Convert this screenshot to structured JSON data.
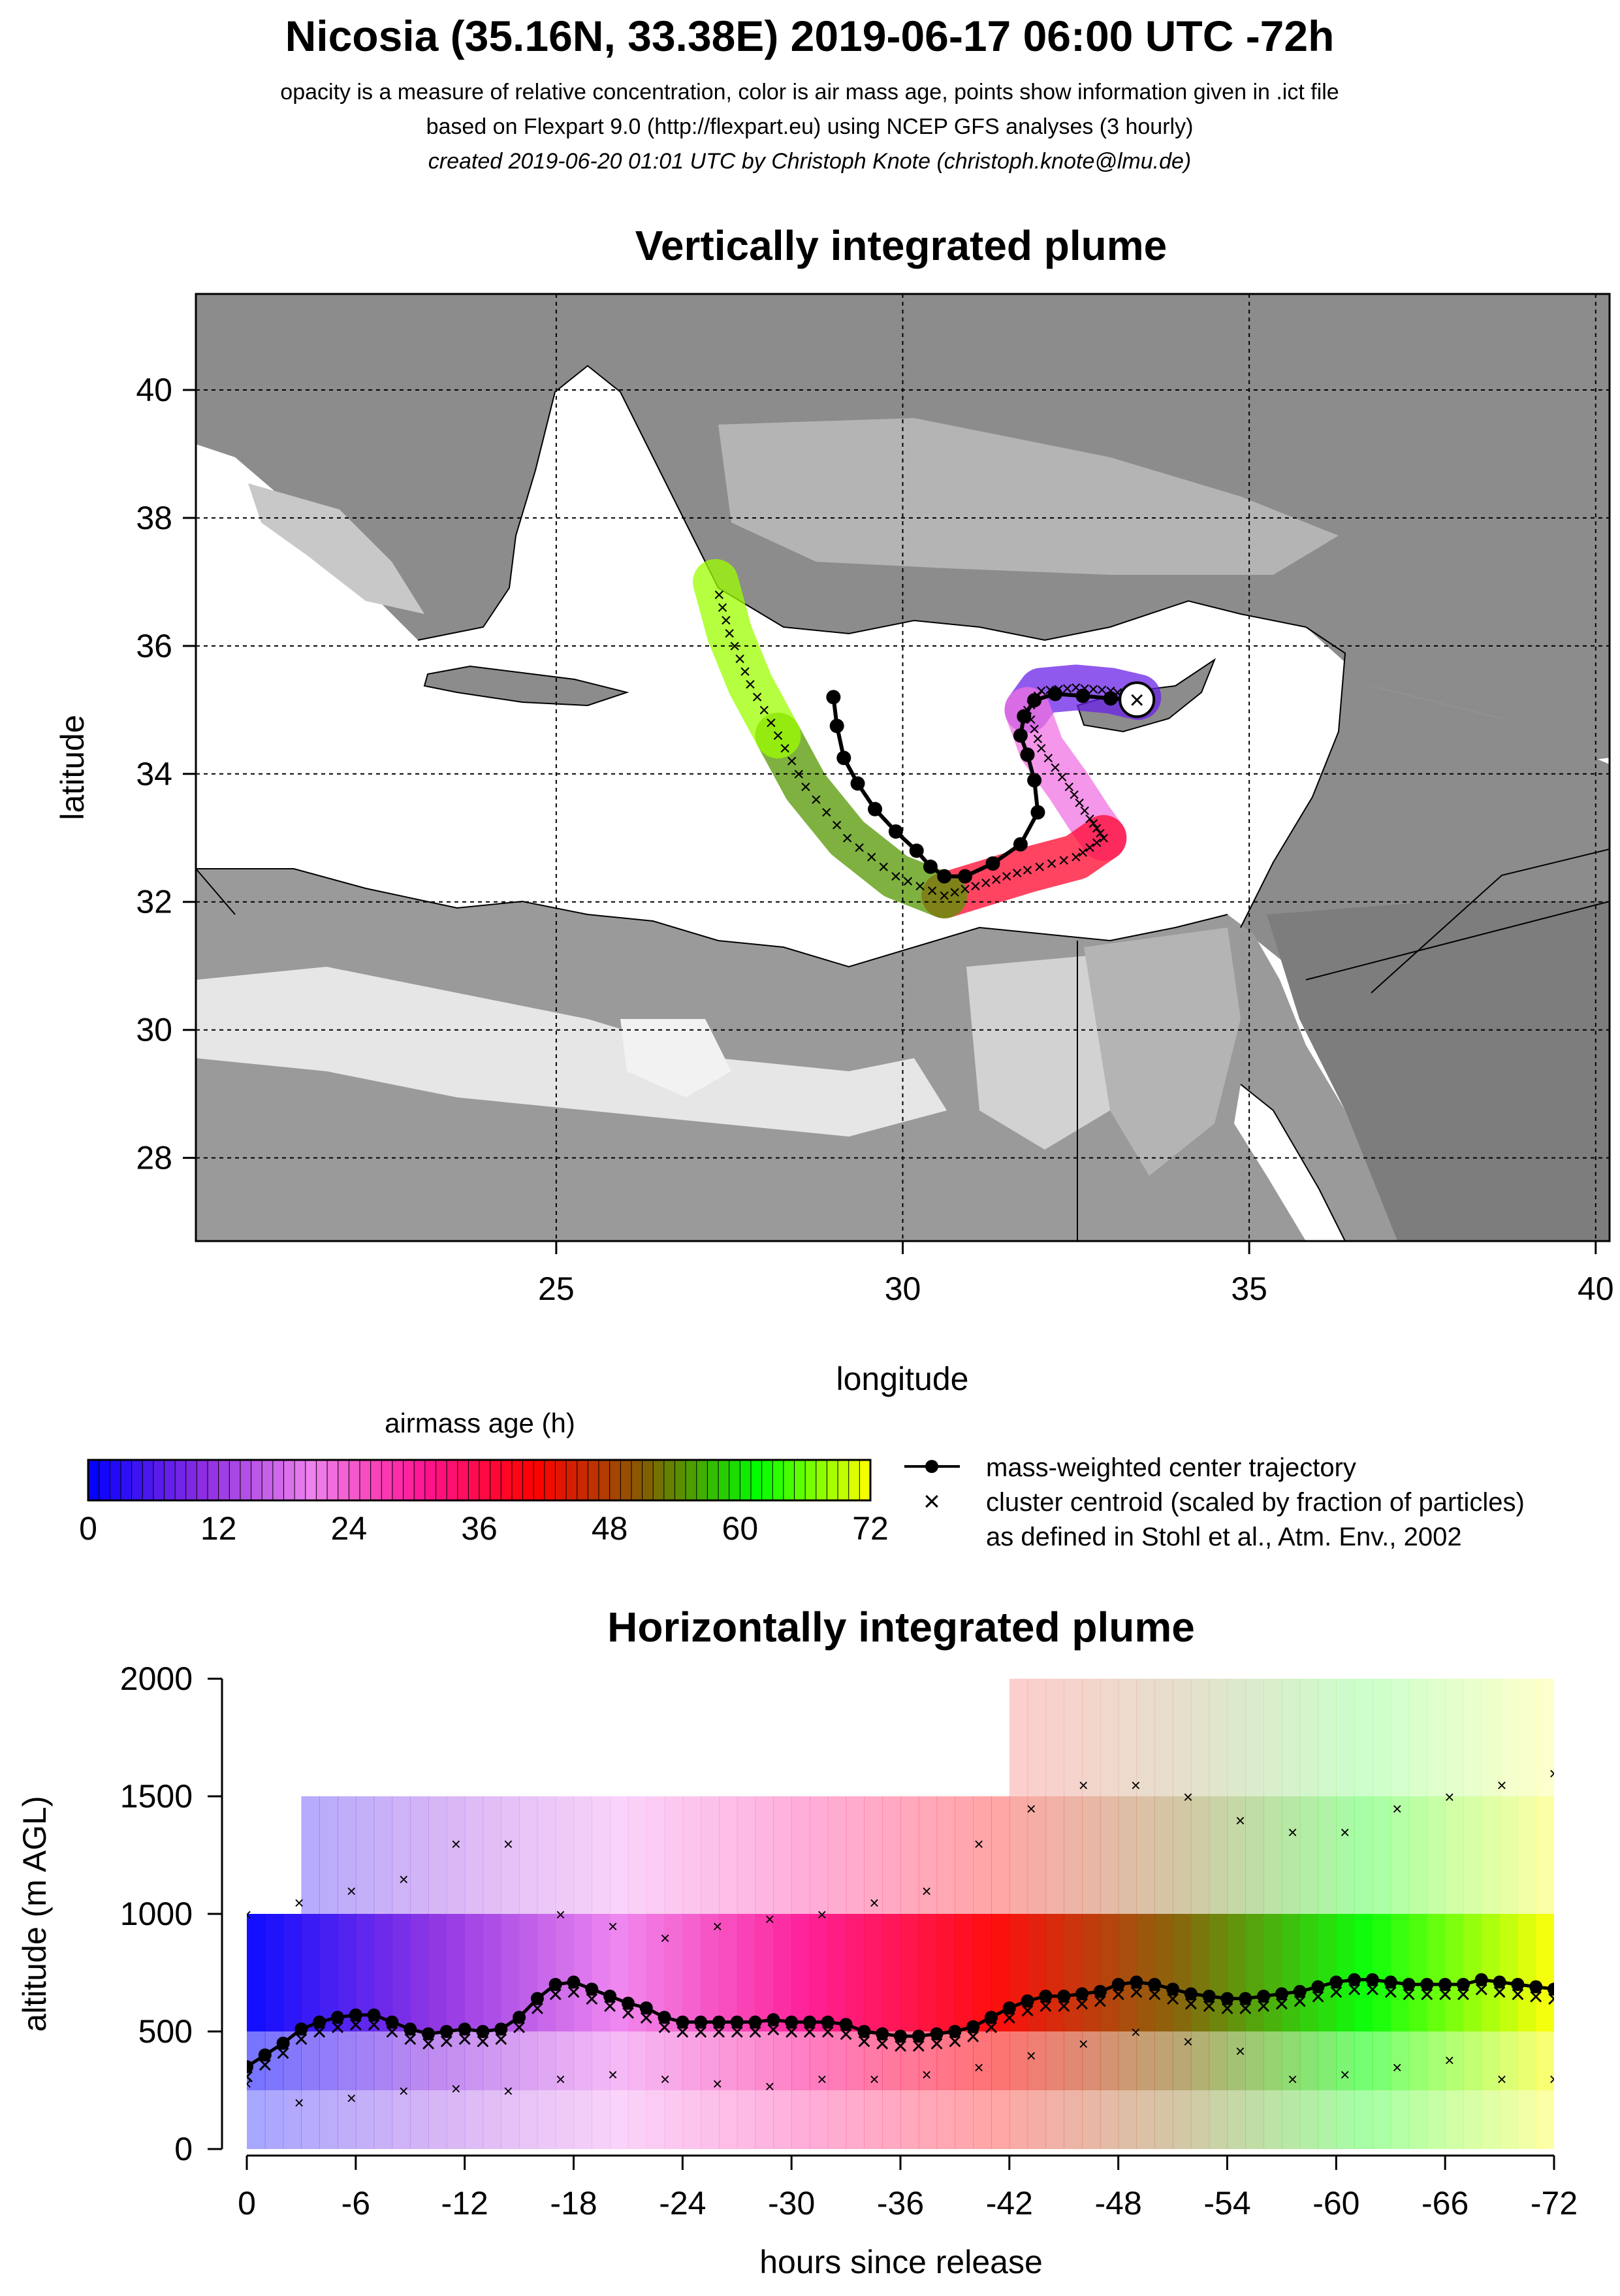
{
  "header": {
    "title": "Nicosia (35.16N, 33.38E) 2019-06-17 06:00 UTC -72h",
    "line1": "opacity is a measure of relative concentration, color is air mass age, points show information given in .ict file",
    "line2": "based on Flexpart 9.0 (http://flexpart.eu) using NCEP GFS analyses (3 hourly)",
    "line3": "created 2019-06-20 01:01 UTC by Christoph Knote (christoph.knote@lmu.de)"
  },
  "colors": {
    "age_ramp": [
      "#0000ff",
      "#8a2be2",
      "#ee82ee",
      "#ff1493",
      "#ff0000",
      "#806000",
      "#00ff00",
      "#ffff00"
    ],
    "land": "#888888",
    "sea": "#ffffff",
    "grid": "#000000"
  },
  "chart_data": [
    {
      "type": "heatmap",
      "title": "Vertically integrated plume",
      "xlabel": "longitude",
      "ylabel": "latitude",
      "xlim": [
        19.8,
        40.2
      ],
      "ylim": [
        26.7,
        41.5
      ],
      "xticks": [
        25,
        30,
        35,
        40
      ],
      "yticks": [
        28,
        30,
        32,
        34,
        36,
        38,
        40
      ],
      "grid": true,
      "release_point": {
        "lon": 33.38,
        "lat": 35.16
      },
      "center_trajectory": {
        "lon": [
          33.38,
          33.0,
          32.6,
          32.2,
          31.9,
          31.75,
          31.7,
          31.8,
          31.9,
          31.95,
          31.7,
          31.3,
          30.9,
          30.6,
          30.4,
          30.2,
          29.9,
          29.6,
          29.35,
          29.15,
          29.05,
          29.0
        ],
        "lat": [
          35.16,
          35.18,
          35.22,
          35.25,
          35.15,
          34.9,
          34.6,
          34.3,
          33.9,
          33.4,
          32.9,
          32.6,
          32.4,
          32.4,
          32.55,
          32.8,
          33.1,
          33.45,
          33.85,
          34.25,
          34.75,
          35.2
        ],
        "age_h": [
          0,
          3,
          6,
          9,
          12,
          15,
          18,
          21,
          24,
          27,
          30,
          33,
          36,
          39,
          42,
          45,
          48,
          51,
          54,
          57,
          60,
          72
        ]
      },
      "plume_segments": [
        {
          "lon": [
            33.4,
            33.0,
            32.5,
            32.0,
            31.8
          ],
          "lat": [
            35.2,
            35.3,
            35.35,
            35.3,
            35.0
          ],
          "age_h": 8
        },
        {
          "lon": [
            31.8,
            32.0,
            32.4,
            32.7,
            32.9
          ],
          "lat": [
            35.0,
            34.4,
            33.8,
            33.3,
            33.0
          ],
          "age_h": 22
        },
        {
          "lon": [
            32.9,
            32.5,
            31.8,
            31.2,
            30.6
          ],
          "lat": [
            33.0,
            32.7,
            32.5,
            32.3,
            32.1
          ],
          "age_h": 38
        },
        {
          "lon": [
            30.6,
            29.9,
            29.2,
            28.6,
            28.2
          ],
          "lat": [
            32.1,
            32.4,
            33.0,
            33.8,
            34.6
          ],
          "age_h": 55
        },
        {
          "lon": [
            28.2,
            27.8,
            27.5,
            27.3
          ],
          "lat": [
            34.6,
            35.4,
            36.2,
            37.0
          ],
          "age_h": 68
        }
      ],
      "colorbar": {
        "label": "airmass age (h)",
        "min": 0,
        "max": 72,
        "ticks": [
          0,
          12,
          24,
          36,
          48,
          60,
          72
        ]
      },
      "legend": [
        "mass-weighted center trajectory",
        "cluster centroid (scaled by fraction of particles)",
        "as defined in Stohl et al., Atm. Env., 2002"
      ]
    },
    {
      "type": "heatmap",
      "title": "Horizontally integrated plume",
      "xlabel": "hours since release",
      "ylabel": "altitude (m AGL)",
      "xlim": [
        0,
        -72
      ],
      "ylim": [
        0,
        2000
      ],
      "xticks": [
        0,
        -6,
        -12,
        -18,
        -24,
        -30,
        -36,
        -42,
        -48,
        -54,
        -60,
        -66,
        -72
      ],
      "yticks": [
        0,
        500,
        1000,
        1500,
        2000
      ],
      "center_altitude": {
        "hours": [
          0,
          -1,
          -2,
          -3,
          -4,
          -5,
          -6,
          -7,
          -8,
          -9,
          -10,
          -11,
          -12,
          -13,
          -14,
          -15,
          -16,
          -17,
          -18,
          -19,
          -20,
          -21,
          -22,
          -23,
          -24,
          -25,
          -26,
          -27,
          -28,
          -29,
          -30,
          -31,
          -32,
          -33,
          -34,
          -35,
          -36,
          -37,
          -38,
          -39,
          -40,
          -41,
          -42,
          -43,
          -44,
          -45,
          -46,
          -47,
          -48,
          -49,
          -50,
          -51,
          -52,
          -53,
          -54,
          -55,
          -56,
          -57,
          -58,
          -59,
          -60,
          -61,
          -62,
          -63,
          -64,
          -65,
          -66,
          -67,
          -68,
          -69,
          -70,
          -71,
          -72
        ],
        "altitude": [
          350,
          400,
          450,
          510,
          540,
          560,
          570,
          570,
          540,
          510,
          490,
          500,
          510,
          500,
          510,
          560,
          640,
          700,
          710,
          680,
          650,
          620,
          600,
          560,
          540,
          540,
          540,
          540,
          540,
          550,
          540,
          540,
          540,
          530,
          500,
          490,
          480,
          480,
          490,
          500,
          520,
          560,
          600,
          630,
          650,
          650,
          660,
          670,
          700,
          710,
          700,
          680,
          660,
          650,
          640,
          640,
          650,
          660,
          670,
          690,
          710,
          720,
          720,
          710,
          700,
          700,
          700,
          700,
          720,
          710,
          700,
          690,
          680
        ]
      },
      "cluster_centroids_upper": [
        1000,
        1050,
        1100,
        1150,
        1300,
        1300,
        1000,
        950,
        900,
        950,
        980,
        1000,
        1050,
        1100,
        1300,
        1450,
        1550,
        1550,
        1500,
        1400,
        1350,
        1350,
        1450,
        1500,
        1550,
        1600
      ],
      "cluster_centroids_lower": [
        280,
        200,
        220,
        250,
        260,
        250,
        300,
        320,
        300,
        280,
        270,
        300,
        300,
        320,
        350,
        400,
        450,
        500,
        460,
        420,
        300,
        320,
        350,
        380,
        300,
        300
      ]
    }
  ]
}
